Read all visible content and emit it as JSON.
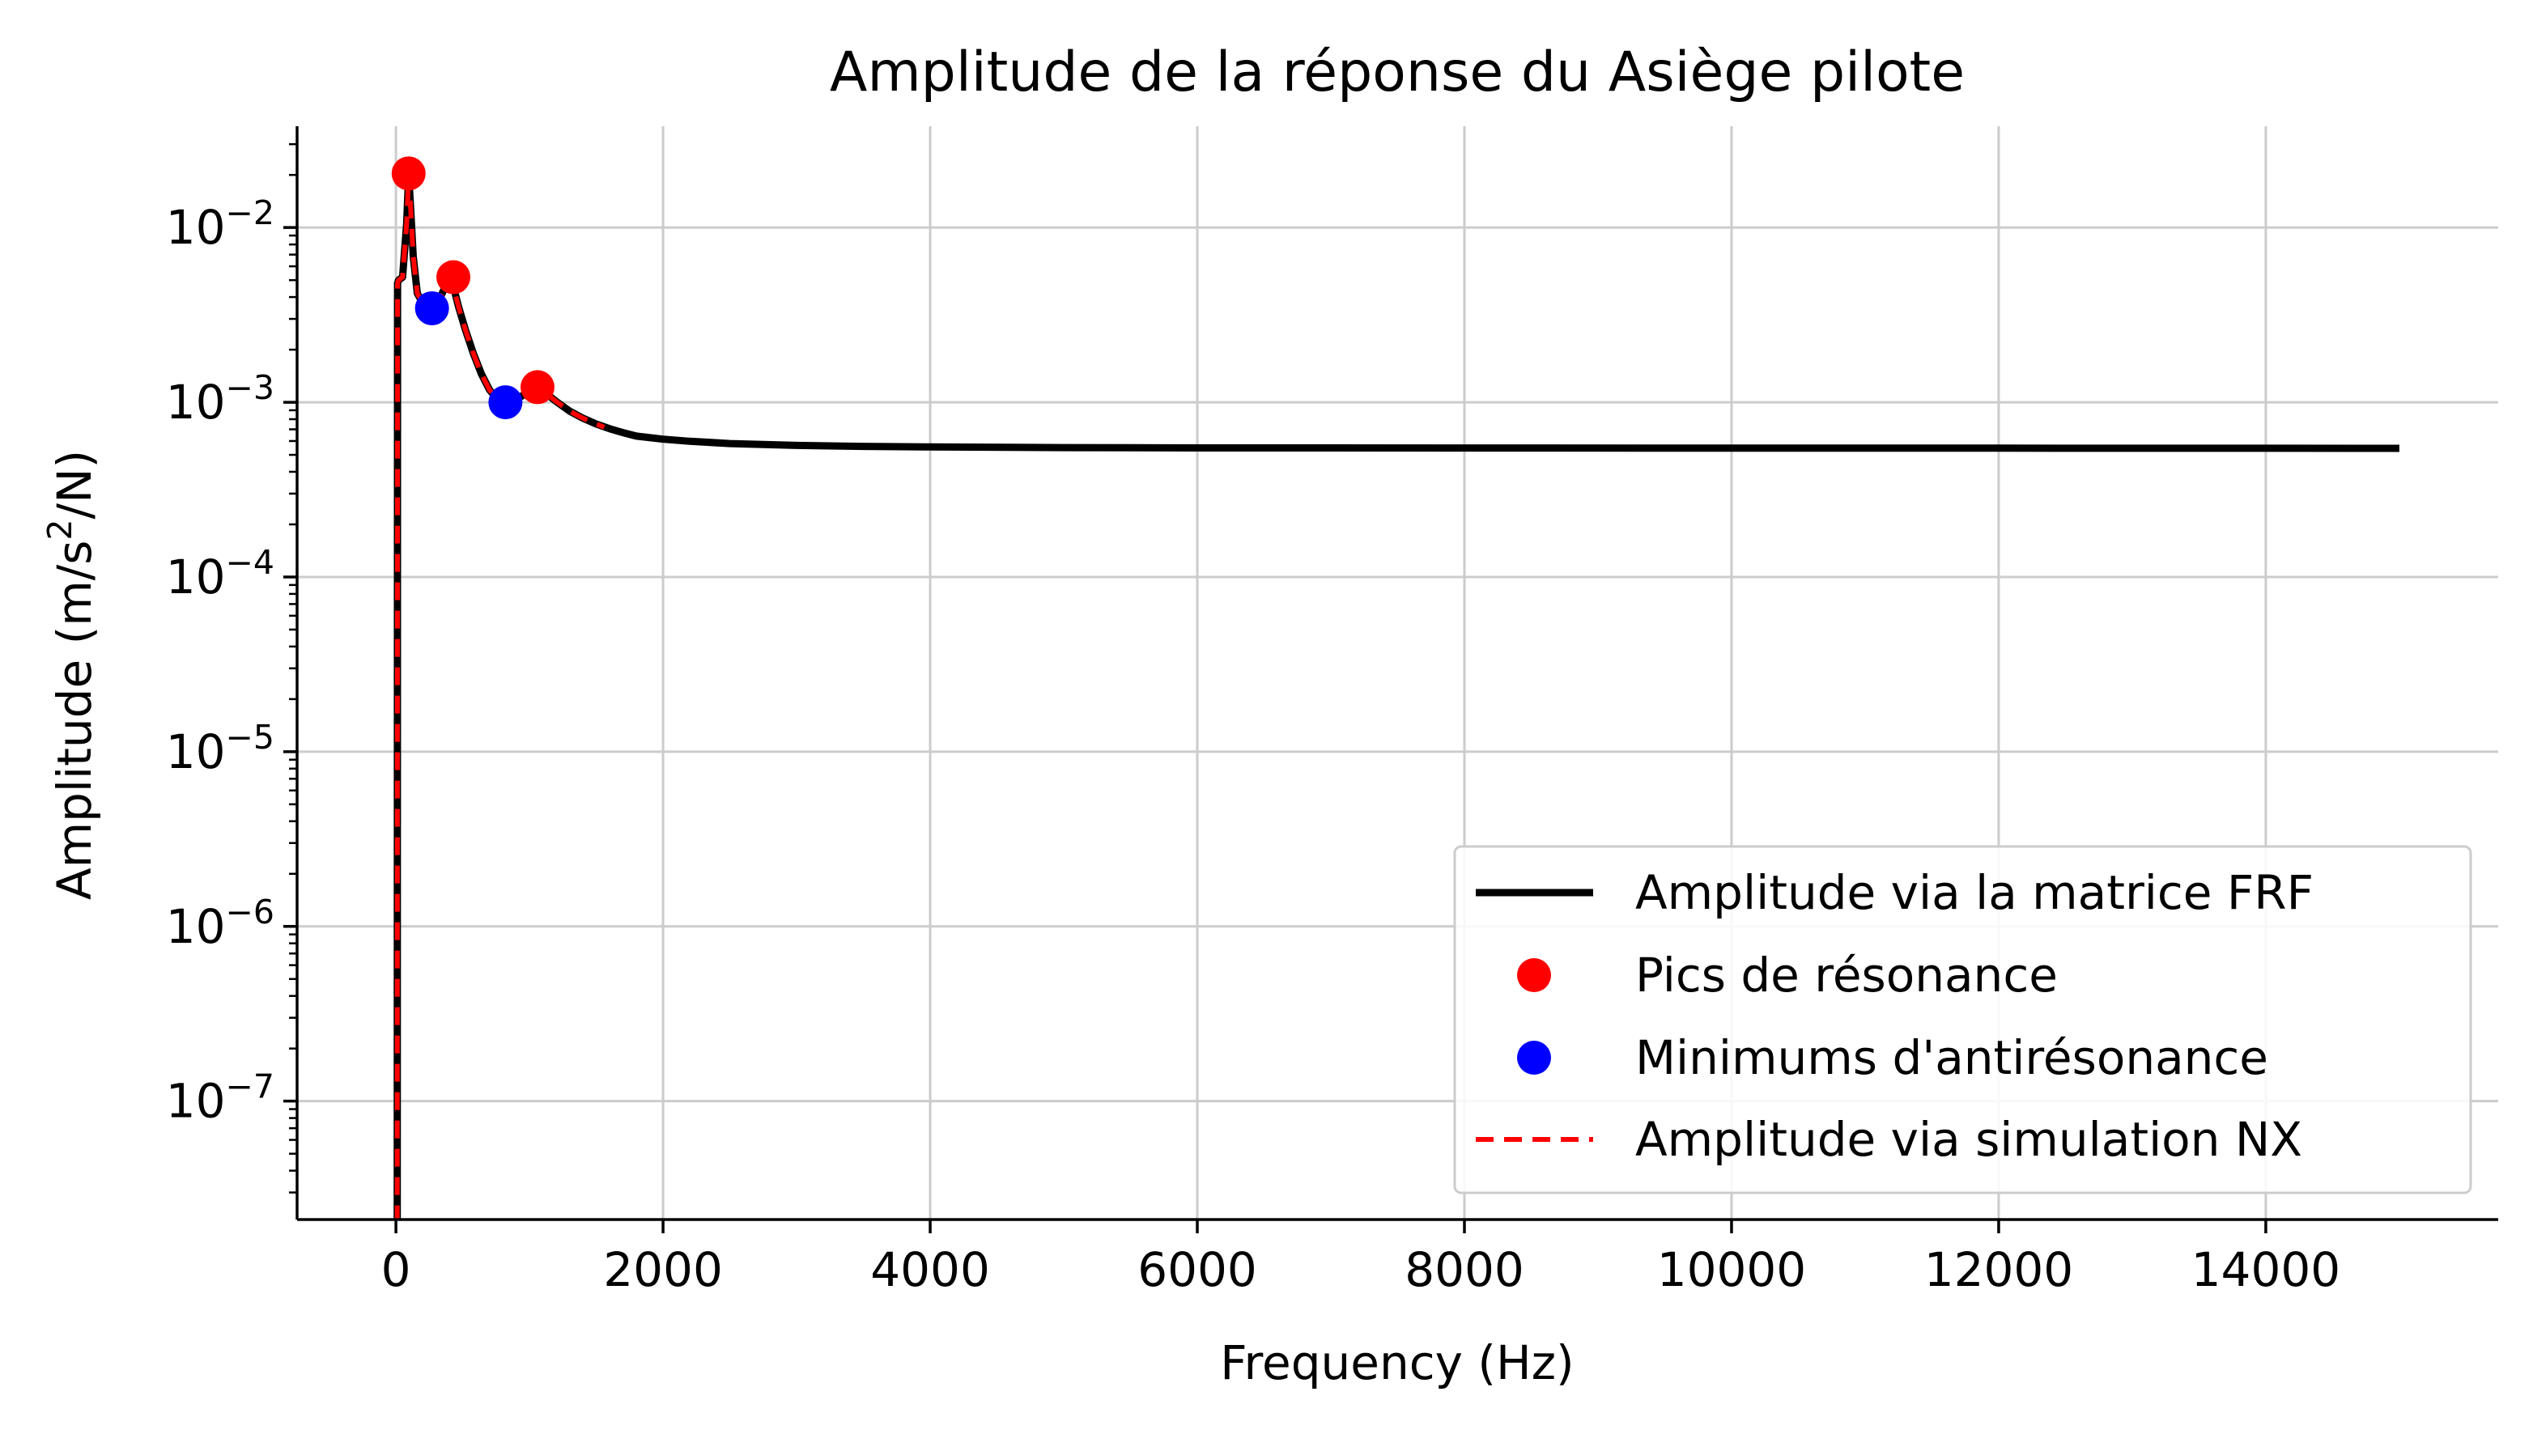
{
  "chart_data": {
    "type": "line",
    "title": "Amplitude de la réponse du Asiège pilote",
    "xlabel": "Frequency (Hz)",
    "ylabel": "Amplitude (m/s²/N)",
    "ylabel_parts": {
      "before": "Amplitude (m/s",
      "sup": "2",
      "after": "/N)"
    },
    "xlim": [
      -740,
      15740
    ],
    "ylim": [
      2.1e-08,
      0.038
    ],
    "yscale": "log",
    "grid": true,
    "legend_position": "lower-right",
    "x_ticks": [
      {
        "value": 0,
        "label": "0"
      },
      {
        "value": 2000,
        "label": "2000"
      },
      {
        "value": 4000,
        "label": "4000"
      },
      {
        "value": 6000,
        "label": "6000"
      },
      {
        "value": 8000,
        "label": "8000"
      },
      {
        "value": 10000,
        "label": "10000"
      },
      {
        "value": 12000,
        "label": "12000"
      },
      {
        "value": 14000,
        "label": "14000"
      }
    ],
    "y_ticks": [
      {
        "value": 1e-07,
        "base": "10",
        "exp": "−7"
      },
      {
        "value": 1e-06,
        "base": "10",
        "exp": "−6"
      },
      {
        "value": 1e-05,
        "base": "10",
        "exp": "−5"
      },
      {
        "value": 0.0001,
        "base": "10",
        "exp": "−4"
      },
      {
        "value": 0.001,
        "base": "10",
        "exp": "−3"
      },
      {
        "value": 0.01,
        "base": "10",
        "exp": "−2"
      }
    ],
    "series": [
      {
        "name": "Amplitude via la matrice FRF",
        "style": "line",
        "color": "#000000",
        "x": [
          10,
          12,
          20,
          50,
          80,
          95,
          110,
          130,
          160,
          200,
          260,
          320,
          370,
          400,
          430,
          470,
          520,
          580,
          640,
          700,
          760,
          800,
          860,
          930,
          1000,
          1060,
          1120,
          1200,
          1300,
          1400,
          1500,
          1600,
          1700,
          1800,
          2000,
          2200,
          2500,
          3000,
          3500,
          4000,
          5000,
          6000,
          8000,
          10000,
          12000,
          15000
        ],
        "y": [
          2e-08,
          0.0048,
          0.005,
          0.0052,
          0.0105,
          0.02,
          0.013,
          0.0068,
          0.0042,
          0.0037,
          0.0035,
          0.0038,
          0.0046,
          0.0052,
          0.0046,
          0.0035,
          0.0026,
          0.0019,
          0.00145,
          0.00118,
          0.00104,
          0.001,
          0.00101,
          0.00107,
          0.00116,
          0.00122,
          0.00113,
          0.00101,
          0.00089,
          0.00081,
          0.00075,
          0.000705,
          0.00067,
          0.00064,
          0.000615,
          0.000598,
          0.00058,
          0.000566,
          0.000559,
          0.000555,
          0.00055,
          0.000548,
          0.000547,
          0.000546,
          0.000546,
          0.000545
        ]
      },
      {
        "name": "Pics de résonance",
        "style": "markers",
        "color": "#ff0000",
        "x": [
          95,
          430,
          1060
        ],
        "y": [
          0.0204,
          0.0052,
          0.00122
        ]
      },
      {
        "name": "Minimums d'antirésonance",
        "style": "markers",
        "color": "#0000ff",
        "x": [
          270,
          820
        ],
        "y": [
          0.00345,
          0.001
        ]
      },
      {
        "name": "Amplitude via simulation NX",
        "style": "dashed",
        "color": "#ff0000",
        "x": [
          10,
          12,
          20,
          50,
          80,
          95,
          110,
          130,
          160,
          200,
          260,
          320,
          370,
          400,
          430,
          470,
          520,
          580,
          640,
          700,
          760,
          800,
          860,
          930,
          1000,
          1060,
          1120,
          1200,
          1300,
          1400,
          1500,
          1560
        ],
        "y": [
          2e-08,
          0.0048,
          0.005,
          0.0052,
          0.0105,
          0.02,
          0.013,
          0.0068,
          0.0042,
          0.0037,
          0.0035,
          0.0038,
          0.0046,
          0.0052,
          0.0046,
          0.0035,
          0.0026,
          0.0019,
          0.00145,
          0.00118,
          0.00104,
          0.001,
          0.00101,
          0.00107,
          0.00116,
          0.00122,
          0.00113,
          0.00101,
          0.00089,
          0.00081,
          0.00075,
          0.00072
        ]
      }
    ]
  }
}
